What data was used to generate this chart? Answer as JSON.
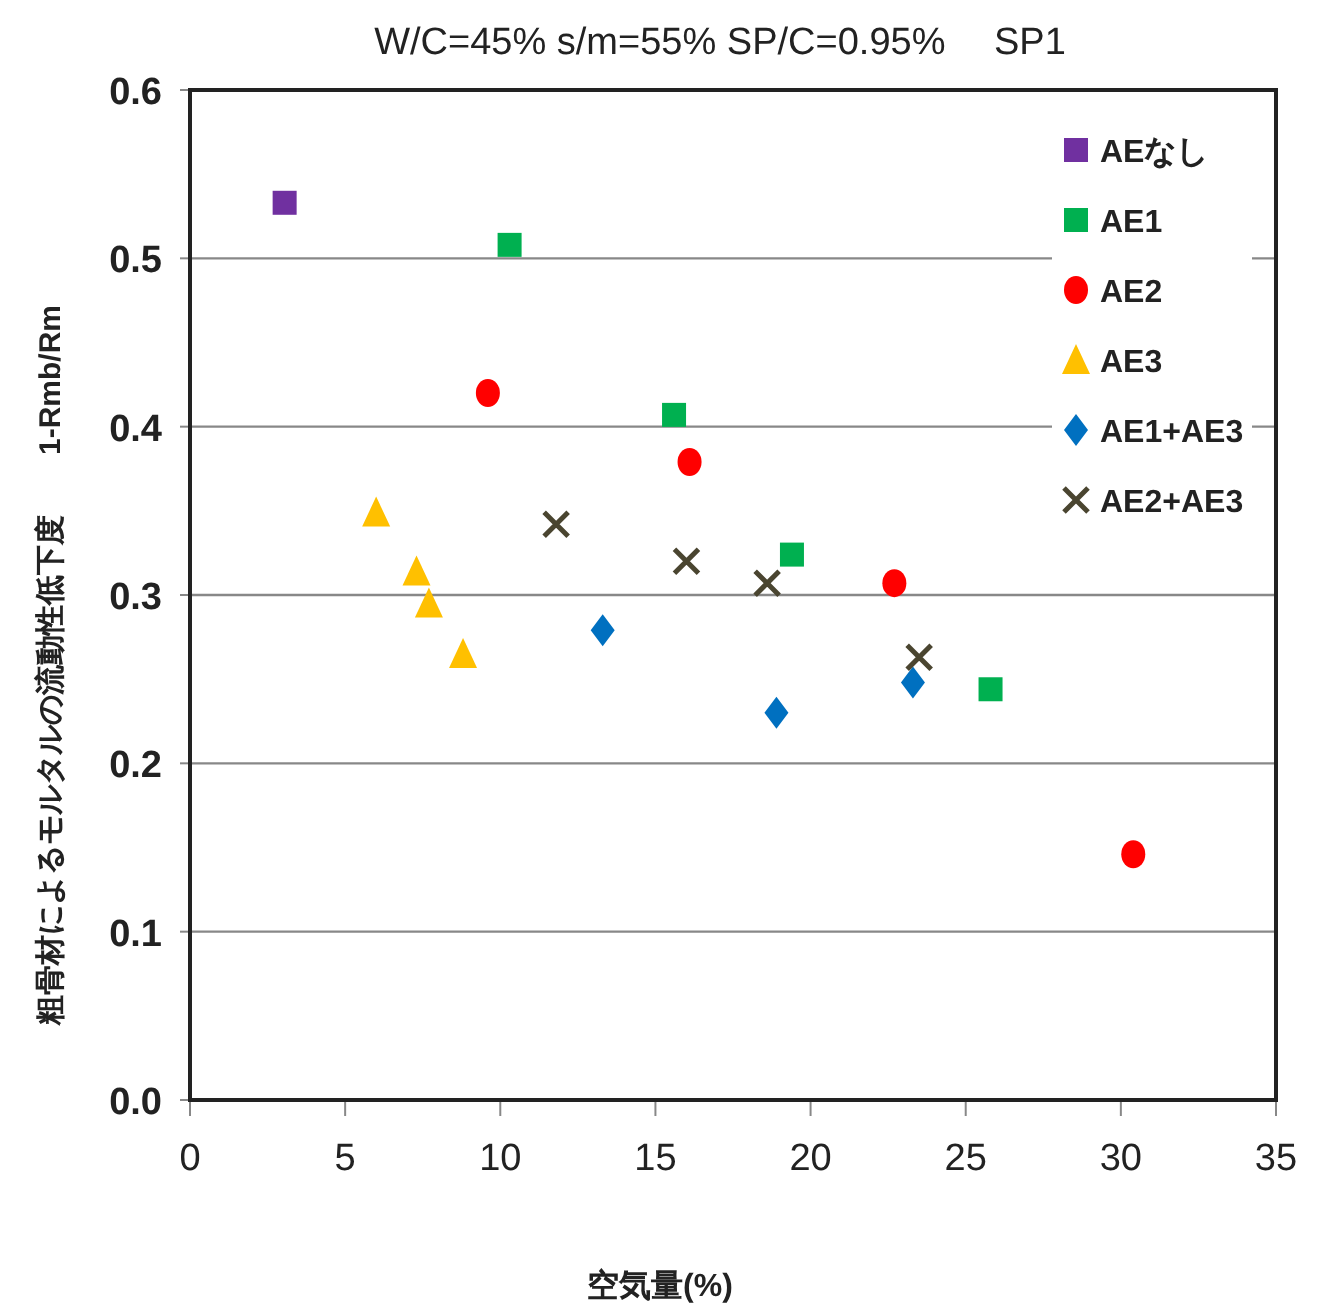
{
  "chart_data": {
    "type": "scatter",
    "title": "W/C=45% s/m=55% SP/C=0.95%　 SP1",
    "xlabel": "空気量(%)",
    "ylabel": "粗骨材によるモルタルの流動性低下度　　1-Rmb/Rm",
    "xlim": [
      0,
      35
    ],
    "xticks": [
      0,
      5,
      10,
      15,
      20,
      25,
      30,
      35
    ],
    "ylim": [
      0,
      0.6
    ],
    "yticks": [
      {
        "value": 0,
        "label": "0.0"
      },
      0.1,
      0.2,
      0.3,
      0.4,
      0.5,
      0.6
    ],
    "grid": "y",
    "legend": "top right",
    "series": [
      {
        "name": "AEなし",
        "color": "#7030a0",
        "marker": "square",
        "x": [
          3.05
        ],
        "values": [
          0.533
        ]
      },
      {
        "name": "AE1",
        "color": "#00b050",
        "marker": "square",
        "x": [
          10.3,
          15.6,
          19.4,
          25.8
        ],
        "values": [
          0.508,
          0.407,
          0.324,
          0.244
        ]
      },
      {
        "name": "AE2",
        "color": "#ff0000",
        "marker": "circle",
        "x": [
          9.6,
          16.1,
          22.7,
          30.4
        ],
        "values": [
          0.42,
          0.379,
          0.307,
          0.146
        ]
      },
      {
        "name": "AE3",
        "color": "#ffc000",
        "marker": "triangle",
        "x": [
          6.0,
          7.3,
          7.7,
          8.8
        ],
        "values": [
          0.349,
          0.314,
          0.295,
          0.265
        ]
      },
      {
        "name": "AE1+AE3",
        "color": "#0070c0",
        "marker": "diamond",
        "x": [
          13.3,
          18.9,
          23.3
        ],
        "values": [
          0.279,
          0.23,
          0.248
        ]
      },
      {
        "name": "AE2+AE3",
        "color": "#4a4530",
        "marker": "cross",
        "x": [
          11.8,
          16.0,
          18.6,
          23.5
        ],
        "values": [
          0.342,
          0.32,
          0.307,
          0.263
        ]
      }
    ]
  }
}
